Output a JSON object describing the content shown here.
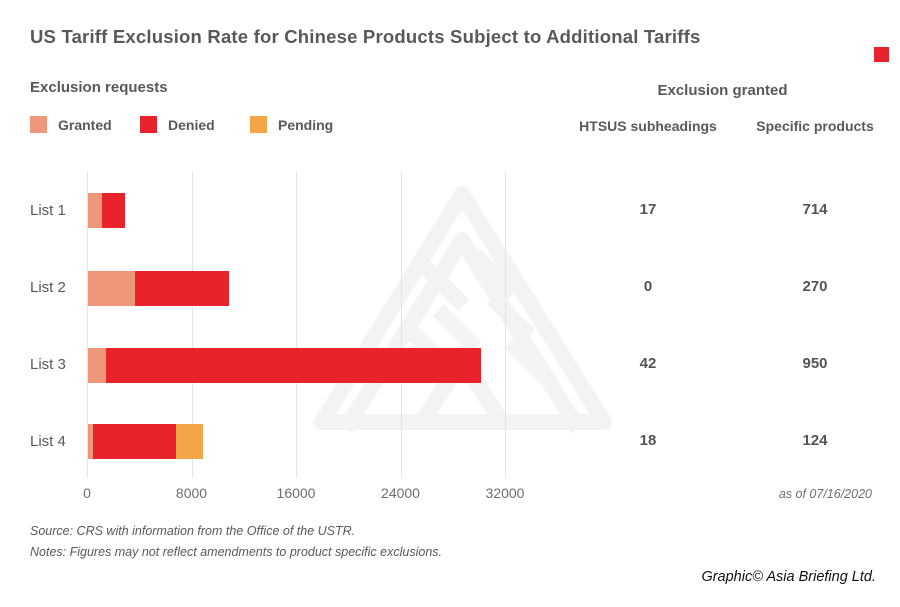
{
  "title": "US Tariff Exclusion Rate for Chinese Products Subject to Additional Tariffs",
  "left_section_header": "Exclusion requests",
  "right_section_header": "Exclusion granted",
  "brand_color": "#E8232B",
  "chart_data": {
    "type": "bar",
    "orientation": "horizontal",
    "stacked": true,
    "title": "Exclusion requests",
    "categories": [
      "List 1",
      "List 2",
      "List 3",
      "List 4"
    ],
    "series": [
      {
        "name": "Granted",
        "color": "#EF977B",
        "values": [
          1050,
          3600,
          1400,
          400
        ]
      },
      {
        "name": "Denied",
        "color": "#E8232B",
        "values": [
          1750,
          7200,
          28700,
          6350
        ]
      },
      {
        "name": "Pending",
        "color": "#F2A645",
        "values": [
          0,
          0,
          0,
          2050
        ]
      }
    ],
    "xticks": [
      0,
      8000,
      16000,
      24000,
      32000
    ],
    "xlim": [
      0,
      33700
    ],
    "grid": "vertical-gridlines",
    "legend_position": "top-left"
  },
  "table": {
    "header": "Exclusion granted",
    "columns": [
      "HTSUS subheadings",
      "Specific products"
    ],
    "rows": [
      {
        "list": "List 1",
        "htsus_subheadings": "17",
        "specific_products": "714"
      },
      {
        "list": "List 2",
        "htsus_subheadings": "0",
        "specific_products": "270"
      },
      {
        "list": "List 3",
        "htsus_subheadings": "42",
        "specific_products": "950"
      },
      {
        "list": "List 4",
        "htsus_subheadings": "18",
        "specific_products": "124"
      }
    ]
  },
  "as_of": "as of 07/16/2020",
  "source_note": "Source: CRS with information from the Office of the USTR.",
  "notes_line": "Notes: Figures may not reflect amendments to product specific exclusions.",
  "credit": "Graphic© Asia Briefing Ltd."
}
